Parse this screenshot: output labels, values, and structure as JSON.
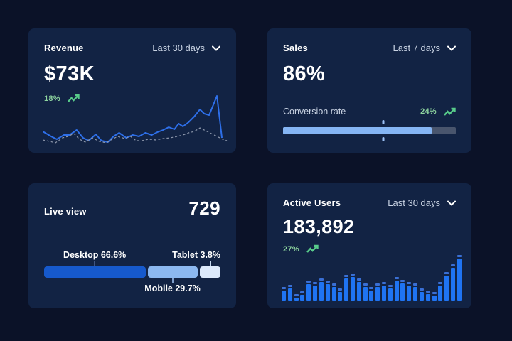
{
  "colors": {
    "page_bg": "#0b1228",
    "card_bg": "#122344",
    "title": "#ffffff",
    "muted": "#c9d3e3",
    "green_text": "#8fd6a0",
    "green_icon": "#58cb8a",
    "line_solid": "#2e6fe8",
    "line_dashed": "#8d97ab",
    "progress_fill": "#85b5f4",
    "progress_track": "#49556d",
    "progress_marker": "#9dc2f7",
    "bar_body": "#1f74f3",
    "bar_cap": "#3a6fd4"
  },
  "cards": {
    "revenue": {
      "title": "Revenue",
      "period": "Last 30 days",
      "value": "$73K",
      "delta": "18%"
    },
    "sales": {
      "title": "Sales",
      "period": "Last 7 days",
      "value": "86%",
      "metric_label": "Conversion rate",
      "delta": "24%"
    },
    "live_view": {
      "title": "Live view",
      "value": "729"
    },
    "active_users": {
      "title": "Active Users",
      "period": "Last 30 days",
      "value": "183,892",
      "delta": "27%"
    }
  },
  "chart_data": [
    {
      "id": "revenue_trend",
      "type": "line",
      "title": "Revenue",
      "period": "Last 30 days",
      "axes": "none (sparkline, coordinates are relative plot units in a 265x82 box, y measured from top)",
      "series": [
        {
          "name": "current",
          "style": "solid",
          "color": "#2e6fe8",
          "points": [
            [
              0,
              58
            ],
            [
              12,
              65
            ],
            [
              20,
              69
            ],
            [
              30,
              63
            ],
            [
              38,
              63
            ],
            [
              48,
              56
            ],
            [
              57,
              67
            ],
            [
              65,
              71
            ],
            [
              75,
              62
            ],
            [
              83,
              71
            ],
            [
              92,
              73
            ],
            [
              100,
              65
            ],
            [
              108,
              60
            ],
            [
              118,
              67
            ],
            [
              127,
              63
            ],
            [
              136,
              65
            ],
            [
              145,
              60
            ],
            [
              154,
              63
            ],
            [
              162,
              59
            ],
            [
              170,
              56
            ],
            [
              178,
              52
            ],
            [
              186,
              55
            ],
            [
              192,
              47
            ],
            [
              198,
              51
            ],
            [
              206,
              45
            ],
            [
              214,
              37
            ],
            [
              222,
              27
            ],
            [
              228,
              33
            ],
            [
              235,
              35
            ],
            [
              246,
              8
            ],
            [
              253,
              67
            ]
          ]
        },
        {
          "name": "previous",
          "style": "dashed",
          "color": "#8d97ab",
          "points": [
            [
              0,
              70
            ],
            [
              10,
              72
            ],
            [
              18,
              74
            ],
            [
              28,
              67
            ],
            [
              36,
              65
            ],
            [
              44,
              61
            ],
            [
              52,
              69
            ],
            [
              60,
              73
            ],
            [
              70,
              67
            ],
            [
              80,
              72
            ],
            [
              90,
              74
            ],
            [
              98,
              69
            ],
            [
              106,
              65
            ],
            [
              116,
              68
            ],
            [
              124,
              65
            ],
            [
              132,
              71
            ],
            [
              140,
              71
            ],
            [
              150,
              69
            ],
            [
              160,
              70
            ],
            [
              170,
              68
            ],
            [
              180,
              67
            ],
            [
              190,
              65
            ],
            [
              198,
              63
            ],
            [
              206,
              60
            ],
            [
              214,
              58
            ],
            [
              222,
              53
            ],
            [
              230,
              57
            ],
            [
              238,
              61
            ],
            [
              246,
              65
            ],
            [
              254,
              69
            ],
            [
              260,
              71
            ]
          ]
        }
      ]
    },
    {
      "id": "sales_conversion",
      "type": "progress",
      "title": "Conversion rate",
      "value": 86,
      "marker": 58
    },
    {
      "id": "liveview_breakdown",
      "type": "stacked_bar",
      "title": "Live view",
      "segments": [
        {
          "name": "Desktop",
          "value": 66.6,
          "label": "Desktop 66.6%",
          "color": "#1659cc",
          "tick_color": "#3f5583",
          "bar_width_pct": 57.5,
          "tick_pct": 28.7,
          "label_pos": "top",
          "label_align": "center"
        },
        {
          "name": "Mobile",
          "value": 29.7,
          "label": "Mobile 29.7%",
          "color": "#8cb8f0",
          "tick_color": "#7f9fce",
          "bar_width_pct": 28.5,
          "tick_pct": 72.8,
          "label_pos": "bottom",
          "label_align": "center"
        },
        {
          "name": "Tablet",
          "value": 3.8,
          "label": "Tablet 3.8%",
          "color": "#dce9fb",
          "tick_color": "#c5d8f0",
          "bar_width_pct": 11.5,
          "tick_pct": 94.3,
          "label_pos": "top",
          "label_align": "right"
        }
      ]
    },
    {
      "id": "active_users_daily",
      "type": "bar",
      "title": "Active Users",
      "period": "Last 30 days",
      "ylim": [
        0,
        100
      ],
      "values": [
        29,
        35,
        14,
        21,
        44,
        40,
        48,
        43,
        37,
        27,
        56,
        59,
        48,
        37,
        29,
        38,
        41,
        35,
        52,
        46,
        40,
        37,
        27,
        22,
        19,
        40,
        63,
        79,
        100
      ]
    }
  ]
}
